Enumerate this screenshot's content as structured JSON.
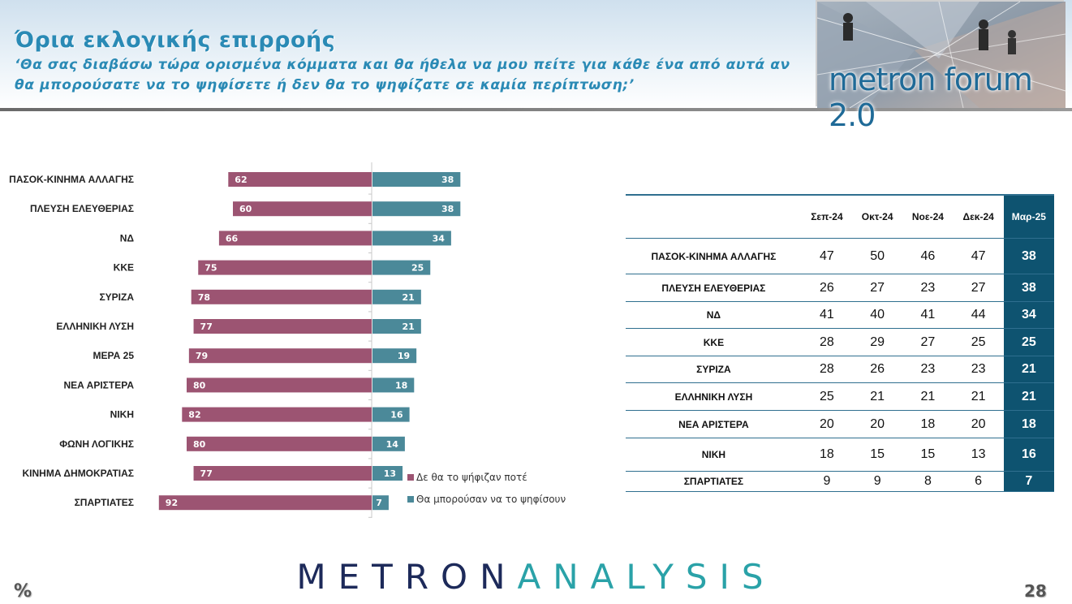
{
  "header": {
    "title": "Όρια εκλογικής επιρροής",
    "subtitle": "‘Θα σας διαβάσω τώρα ορισμένα κόμματα και θα ήθελα να μου πείτε για κάθε ένα από αυτά αν θα μπορούσατε να το ψηφίσετε ή δεν θα το ψηφίζατε σε καμία περίπτωση;’",
    "logo_text": "metron forum 2.0"
  },
  "chart_data": {
    "type": "bar",
    "orientation": "horizontal-diverging",
    "categories": [
      "ΠΑΣΟΚ-ΚΙΝΗΜΑ ΑΛΛΑΓΗΣ",
      "ΠΛΕΥΣΗ ΕΛΕΥΘΕΡΙΑΣ",
      "ΝΔ",
      "ΚΚΕ",
      "ΣΥΡΙΖΑ",
      "ΕΛΛΗΝΙΚΗ ΛΥΣΗ",
      "ΜΕΡΑ 25",
      "ΝΕΑ ΑΡΙΣΤΕΡΑ",
      "ΝΙΚΗ",
      "ΦΩΝΗ ΛΟΓΙΚΗΣ",
      "ΚΙΝΗΜΑ ΔΗΜΟΚΡΑΤΙΑΣ",
      "ΣΠΑΡΤΙΑΤΕΣ"
    ],
    "series": [
      {
        "name": "Δε θα το ψήφιζαν ποτέ",
        "color": "#9c5472",
        "values": [
          62,
          60,
          66,
          75,
          78,
          77,
          79,
          80,
          82,
          80,
          77,
          92
        ]
      },
      {
        "name": "Θα μπορούσαν να το ψηφίσουν",
        "color": "#4b8999",
        "values": [
          38,
          38,
          34,
          25,
          21,
          21,
          19,
          18,
          16,
          14,
          13,
          7
        ]
      }
    ],
    "legend_position": "bottom-right",
    "grid": false
  },
  "table": {
    "columns": [
      "Σεπ-24",
      "Οκτ-24",
      "Νοε-24",
      "Δεκ-24",
      "Μαρ-25"
    ],
    "rows": [
      {
        "name": "ΠΑΣΟΚ-ΚΙΝΗΜΑ ΑΛΛΑΓΗΣ",
        "values": [
          47,
          50,
          46,
          47,
          38
        ]
      },
      {
        "name": "ΠΛΕΥΣΗ ΕΛΕΥΘΕΡΙΑΣ",
        "values": [
          26,
          27,
          23,
          27,
          38
        ]
      },
      {
        "name": "ΝΔ",
        "values": [
          41,
          40,
          41,
          44,
          34
        ]
      },
      {
        "name": "ΚΚΕ",
        "values": [
          28,
          29,
          27,
          25,
          25
        ]
      },
      {
        "name": "ΣΥΡΙΖΑ",
        "values": [
          28,
          26,
          23,
          23,
          21
        ]
      },
      {
        "name": "ΕΛΛΗΝΙΚΗ ΛΥΣΗ",
        "values": [
          25,
          21,
          21,
          21,
          21
        ]
      },
      {
        "name": "ΝΕΑ ΑΡΙΣΤΕΡΑ",
        "values": [
          20,
          20,
          18,
          20,
          18
        ]
      },
      {
        "name": "ΝΙΚΗ",
        "values": [
          18,
          15,
          15,
          13,
          16
        ]
      },
      {
        "name": "ΣΠΑΡΤΙΑΤΕΣ",
        "values": [
          9,
          9,
          8,
          6,
          7
        ]
      }
    ]
  },
  "footer": {
    "brand_a": "METRON",
    "brand_b": "ANALYSIS",
    "percent_symbol": "%",
    "page_number": "28"
  }
}
